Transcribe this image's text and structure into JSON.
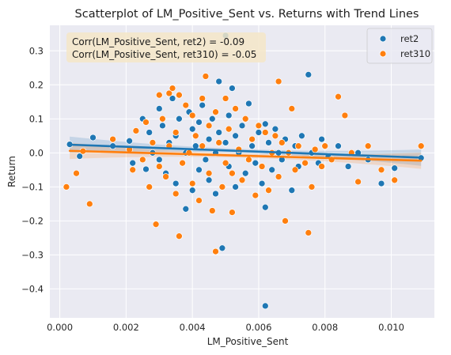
{
  "colors": {
    "plot_bg": "#eaeaf2",
    "ret2": "#1f77b4",
    "ret310": "#ff7f0e",
    "annotation_bg": "#f5e6c8"
  },
  "chart_data": {
    "type": "scatter",
    "title": "Scatterplot of LM_Positive_Sent vs. Returns with Trend Lines",
    "xlabel": "LM_Positive_Sent",
    "ylabel": "Return",
    "xlim": [
      -0.0003,
      0.0113
    ],
    "ylim": [
      -0.485,
      0.375
    ],
    "xticks": [
      0.0,
      0.002,
      0.004,
      0.006,
      0.008,
      0.01
    ],
    "xtick_labels": [
      "0.000",
      "0.002",
      "0.004",
      "0.006",
      "0.008",
      "0.010"
    ],
    "yticks": [
      -0.4,
      -0.3,
      -0.2,
      -0.1,
      0.0,
      0.1,
      0.2,
      0.3
    ],
    "ytick_labels": [
      "−0.4",
      "−0.3",
      "−0.2",
      "−0.1",
      "0.0",
      "0.1",
      "0.2",
      "0.3"
    ],
    "grid": true,
    "legend_position": "top-right",
    "annotations": [
      "Corr(LM_Positive_Sent, ret2) = -0.09",
      "Corr(LM_Positive_Sent, ret310) = -0.05"
    ],
    "series": [
      {
        "name": "ret2",
        "color": "#1f77b4",
        "trend": {
          "x": [
            0.0003,
            0.0109
          ],
          "y": [
            0.024,
            -0.014
          ]
        },
        "points": [
          [
            0.0003,
            0.025
          ],
          [
            0.0006,
            -0.01
          ],
          [
            0.001,
            0.045
          ],
          [
            0.0016,
            0.02
          ],
          [
            0.0021,
            0.035
          ],
          [
            0.0022,
            -0.03
          ],
          [
            0.0025,
            0.1
          ],
          [
            0.0026,
            -0.048
          ],
          [
            0.0027,
            0.06
          ],
          [
            0.0028,
            0.0
          ],
          [
            0.003,
            0.13
          ],
          [
            0.003,
            -0.02
          ],
          [
            0.0031,
            0.08
          ],
          [
            0.0032,
            -0.06
          ],
          [
            0.0033,
            0.03
          ],
          [
            0.0034,
            0.16
          ],
          [
            0.0035,
            -0.09
          ],
          [
            0.0035,
            0.05
          ],
          [
            0.0036,
            0.1
          ],
          [
            0.0037,
            -0.03
          ],
          [
            0.0038,
            0.0
          ],
          [
            0.0038,
            -0.165
          ],
          [
            0.0039,
            0.12
          ],
          [
            0.004,
            0.07
          ],
          [
            0.004,
            -0.11
          ],
          [
            0.0041,
            0.02
          ],
          [
            0.0042,
            -0.05
          ],
          [
            0.0042,
            0.09
          ],
          [
            0.0043,
            0.14
          ],
          [
            0.0044,
            -0.02
          ],
          [
            0.0045,
            0.04
          ],
          [
            0.0045,
            -0.08
          ],
          [
            0.0046,
            0.1
          ],
          [
            0.0047,
            0.0
          ],
          [
            0.0047,
            -0.12
          ],
          [
            0.0048,
            0.06
          ],
          [
            0.0048,
            0.21
          ],
          [
            0.0049,
            -0.28
          ],
          [
            0.005,
            0.345
          ],
          [
            0.005,
            0.03
          ],
          [
            0.0051,
            -0.04
          ],
          [
            0.0051,
            0.11
          ],
          [
            0.0052,
            0.19
          ],
          [
            0.0053,
            -0.1
          ],
          [
            0.0053,
            0.05
          ],
          [
            0.0054,
            0.0
          ],
          [
            0.0055,
            0.08
          ],
          [
            0.0056,
            -0.06
          ],
          [
            0.0057,
            0.145
          ],
          [
            0.0058,
            0.02
          ],
          [
            0.0059,
            -0.03
          ],
          [
            0.006,
            0.06
          ],
          [
            0.0061,
            -0.09
          ],
          [
            0.0062,
            0.085
          ],
          [
            0.0062,
            -0.16
          ],
          [
            0.0062,
            -0.45
          ],
          [
            0.0063,
            0.03
          ],
          [
            0.0064,
            -0.05
          ],
          [
            0.0065,
            0.07
          ],
          [
            0.0066,
            0.0
          ],
          [
            0.0067,
            -0.02
          ],
          [
            0.0068,
            0.04
          ],
          [
            0.007,
            -0.11
          ],
          [
            0.0071,
            0.02
          ],
          [
            0.0072,
            -0.04
          ],
          [
            0.0073,
            0.05
          ],
          [
            0.0075,
            0.23
          ],
          [
            0.0076,
            0.0
          ],
          [
            0.0078,
            -0.03
          ],
          [
            0.0079,
            0.04
          ],
          [
            0.0081,
            -0.01
          ],
          [
            0.0084,
            0.02
          ],
          [
            0.0087,
            -0.04
          ],
          [
            0.009,
            0.0
          ],
          [
            0.0093,
            -0.02
          ],
          [
            0.0097,
            -0.09
          ],
          [
            0.0101,
            -0.045
          ],
          [
            0.0109,
            -0.015
          ]
        ]
      },
      {
        "name": "ret310",
        "color": "#ff7f0e",
        "trend": {
          "x": [
            0.0003,
            0.0109
          ],
          "y": [
            0.006,
            -0.023
          ]
        },
        "points": [
          [
            0.0002,
            -0.1
          ],
          [
            0.0005,
            -0.06
          ],
          [
            0.0007,
            0.005
          ],
          [
            0.0009,
            -0.15
          ],
          [
            0.0016,
            0.04
          ],
          [
            0.0021,
            0.01
          ],
          [
            0.0022,
            -0.05
          ],
          [
            0.0023,
            0.065
          ],
          [
            0.0025,
            -0.02
          ],
          [
            0.0026,
            0.09
          ],
          [
            0.0027,
            -0.1
          ],
          [
            0.0028,
            0.03
          ],
          [
            0.0029,
            -0.21
          ],
          [
            0.003,
            0.17
          ],
          [
            0.003,
            -0.04
          ],
          [
            0.0031,
            0.1
          ],
          [
            0.0032,
            -0.07
          ],
          [
            0.0033,
            0.02
          ],
          [
            0.0033,
            0.175
          ],
          [
            0.0034,
            0.19
          ],
          [
            0.0035,
            -0.12
          ],
          [
            0.0035,
            0.06
          ],
          [
            0.0036,
            -0.245
          ],
          [
            0.0036,
            0.17
          ],
          [
            0.0037,
            -0.03
          ],
          [
            0.0038,
            0.14
          ],
          [
            0.0039,
            0.0
          ],
          [
            0.004,
            -0.09
          ],
          [
            0.004,
            0.11
          ],
          [
            0.0041,
            0.05
          ],
          [
            0.0042,
            -0.14
          ],
          [
            0.0043,
            0.16
          ],
          [
            0.0043,
            0.02
          ],
          [
            0.0044,
            0.225
          ],
          [
            0.0045,
            -0.06
          ],
          [
            0.0045,
            0.08
          ],
          [
            0.0046,
            -0.17
          ],
          [
            0.0047,
            -0.29
          ],
          [
            0.0047,
            0.12
          ],
          [
            0.0048,
            0.03
          ],
          [
            0.0049,
            -0.1
          ],
          [
            0.005,
            0.16
          ],
          [
            0.005,
            -0.03
          ],
          [
            0.0051,
            0.07
          ],
          [
            0.0052,
            -0.06
          ],
          [
            0.0052,
            -0.175
          ],
          [
            0.0053,
            0.13
          ],
          [
            0.0054,
            0.01
          ],
          [
            0.0055,
            -0.08
          ],
          [
            0.0056,
            0.1
          ],
          [
            0.0057,
            -0.02
          ],
          [
            0.0058,
            0.04
          ],
          [
            0.0059,
            -0.125
          ],
          [
            0.006,
            0.08
          ],
          [
            0.0061,
            -0.04
          ],
          [
            0.0062,
            0.06
          ],
          [
            0.0063,
            -0.11
          ],
          [
            0.0064,
            0.0
          ],
          [
            0.0065,
            0.05
          ],
          [
            0.0066,
            0.21
          ],
          [
            0.0066,
            -0.07
          ],
          [
            0.0067,
            0.03
          ],
          [
            0.0068,
            -0.2
          ],
          [
            0.0069,
            0.0
          ],
          [
            0.007,
            0.13
          ],
          [
            0.0071,
            -0.05
          ],
          [
            0.0072,
            0.02
          ],
          [
            0.0074,
            -0.03
          ],
          [
            0.0075,
            -0.235
          ],
          [
            0.0076,
            -0.1
          ],
          [
            0.0077,
            0.01
          ],
          [
            0.0079,
            -0.04
          ],
          [
            0.008,
            0.02
          ],
          [
            0.0082,
            -0.02
          ],
          [
            0.0084,
            0.165
          ],
          [
            0.0086,
            0.11
          ],
          [
            0.0088,
            0.0
          ],
          [
            0.009,
            -0.085
          ],
          [
            0.0093,
            0.02
          ],
          [
            0.0097,
            -0.05
          ],
          [
            0.0101,
            -0.08
          ],
          [
            0.0109,
            0.02
          ]
        ]
      }
    ]
  }
}
